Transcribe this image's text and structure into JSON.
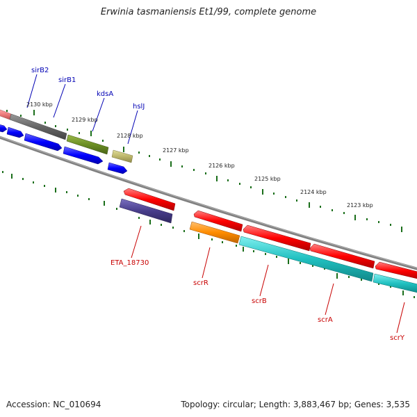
{
  "title": "Erwinia tasmaniensis Et1/99, complete genome",
  "footer": {
    "accession": "Accession: NC_010694",
    "summary": "Topology: circular; Length: 3,883,467 bp; Genes: 3,535"
  },
  "scale_labels": [
    "2130 kbp",
    "2129 kbp",
    "2128 kbp",
    "2127 kbp",
    "2126 kbp",
    "2125 kbp",
    "2124 kbp",
    "2123 kbp"
  ],
  "top_gene_labels": [
    "sirB2",
    "sirB1",
    "kdsA",
    "hslJ"
  ],
  "bottom_gene_labels": [
    "ETA_18730",
    "scrR",
    "scrB",
    "scrA",
    "scrY"
  ],
  "colors": {
    "backbone": "#808080",
    "tick": "#1a6e1a",
    "forward_cds": "#0000ff",
    "reverse_cds": "#ff0000",
    "salmon": "#f08080",
    "gray": "#666666",
    "olive": "#6b8e23",
    "khaki": "#bdb76b",
    "slate": "#483d8b",
    "orange": "#ff8c00",
    "teal": "#20c0c0"
  }
}
